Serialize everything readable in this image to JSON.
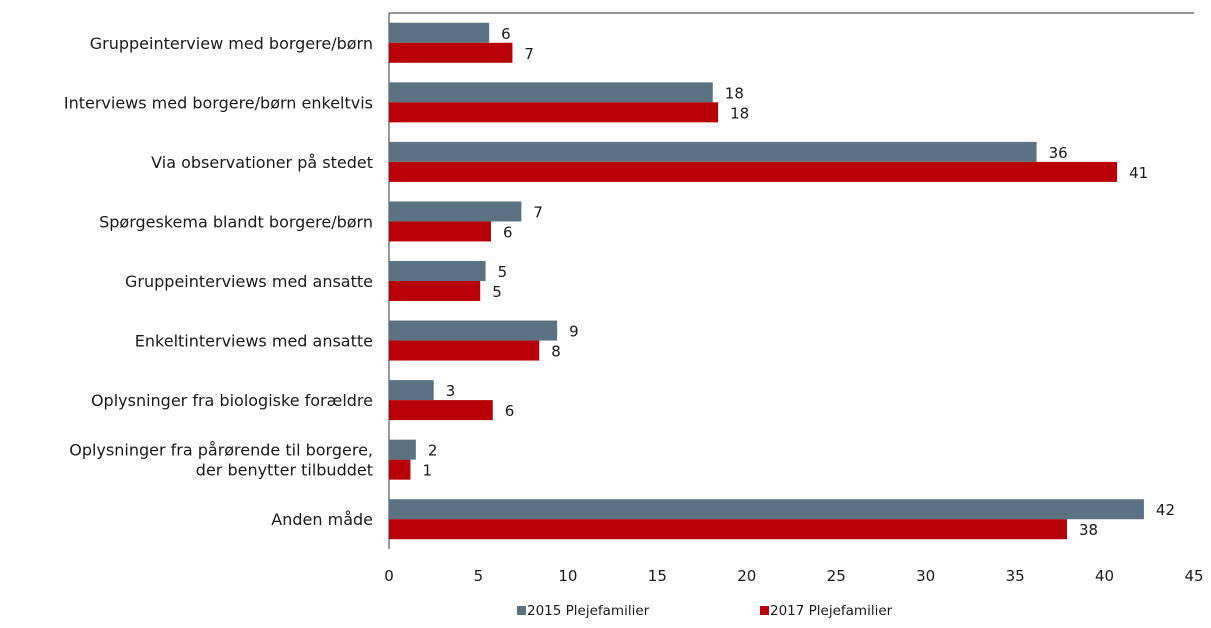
{
  "chart_data": {
    "type": "bar",
    "orientation": "horizontal",
    "categories": [
      "Gruppeinterview med borgere/børn",
      "Interviews med borgere/børn enkeltvis",
      "Via observationer på stedet",
      "Spørgeskema blandt borgere/børn",
      "Gruppeinterviews med ansatte",
      "Enkeltinterviews med ansatte",
      "Oplysninger fra biologiske forældre",
      "Oplysninger fra pårørende til borgere, der benytter tilbuddet",
      "Anden måde"
    ],
    "series": [
      {
        "name": "2015 Plejefamilier",
        "color": "#5a7281",
        "values": [
          5.6,
          18.1,
          36.2,
          7.4,
          5.4,
          9.4,
          2.5,
          1.5,
          42.2
        ],
        "labels": [
          "6",
          "18",
          "36",
          "7",
          "5",
          "9",
          "3",
          "2",
          "42"
        ]
      },
      {
        "name": "2017 Plejefamilier",
        "color": "#b80008",
        "values": [
          6.9,
          18.4,
          40.7,
          5.7,
          5.1,
          8.4,
          5.8,
          1.2,
          37.9
        ],
        "labels": [
          "7",
          "18",
          "41",
          "6",
          "5",
          "8",
          "6",
          "1",
          "38"
        ]
      }
    ],
    "xlim": [
      0,
      45
    ],
    "xticks": [
      "0",
      "5",
      "10",
      "15",
      "20",
      "25",
      "30",
      "35",
      "40",
      "45"
    ],
    "legend": "bottom",
    "grid": false
  }
}
